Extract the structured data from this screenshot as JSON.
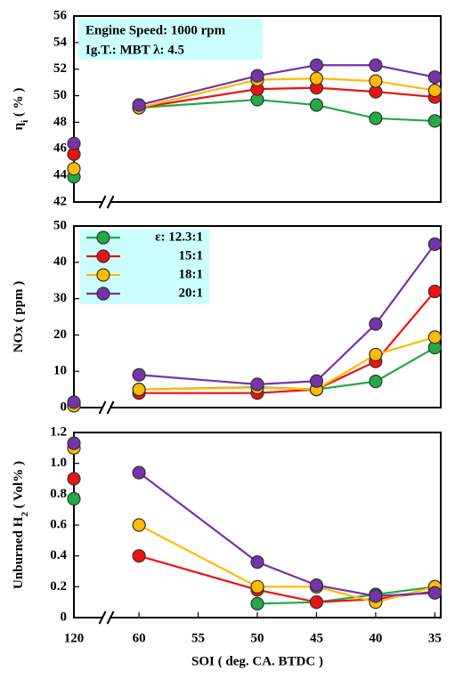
{
  "chart_data": [
    {
      "type": "line",
      "ylabel": [
        "η",
        "i",
        " ( % )"
      ],
      "annotations": [
        "Engine Speed: 1000 rpm",
        "Ig.T.: MBT  λ: 4.5"
      ],
      "x": [
        120,
        60,
        50,
        45,
        40,
        35
      ],
      "xlim": [
        65.5,
        34.5
      ],
      "x_break": true,
      "ylim": [
        42,
        56
      ],
      "yticks": [
        42,
        44,
        46,
        48,
        50,
        52,
        54,
        56
      ],
      "series": [
        {
          "color": "#22aa44",
          "values": [
            43.9,
            49.1,
            49.7,
            49.3,
            48.3,
            48.1
          ]
        },
        {
          "color": "#ee1111",
          "values": [
            45.6,
            49.1,
            50.5,
            50.6,
            50.3,
            49.9
          ]
        },
        {
          "color": "#ffbb00",
          "values": [
            44.5,
            49.1,
            51.2,
            51.3,
            51.1,
            50.4
          ]
        },
        {
          "color": "#7733aa",
          "values": [
            46.4,
            49.3,
            51.5,
            52.3,
            52.3,
            51.4
          ]
        }
      ]
    },
    {
      "type": "line",
      "ylabel": [
        "NOx ( ppm )"
      ],
      "legend": "upper left",
      "x": [
        120,
        60,
        50,
        45,
        40,
        35
      ],
      "xlim": [
        65.5,
        34.5
      ],
      "x_break": true,
      "ylim": [
        0,
        50
      ],
      "yticks": [
        0,
        10,
        20,
        30,
        40,
        50
      ],
      "series": [
        {
          "name": "ε: 12.3:1",
          "color": "#22aa44",
          "values": [
            1,
            5,
            5.6,
            5,
            7.2,
            16.5
          ]
        },
        {
          "name": "15:1",
          "color": "#ee1111",
          "values": [
            1,
            4,
            4,
            5,
            12.7,
            32
          ]
        },
        {
          "name": "18:1",
          "color": "#ffbb00",
          "values": [
            0.5,
            5,
            5.5,
            5,
            14.6,
            19.4
          ]
        },
        {
          "name": "20:1",
          "color": "#7733aa",
          "values": [
            1.5,
            9,
            6.4,
            7.3,
            23,
            45
          ]
        }
      ]
    },
    {
      "type": "line",
      "ylabel": [
        "Unburned H",
        "2",
        " ( Vol% )"
      ],
      "xlabel": "SOI ( deg. CA. BTDC )",
      "x": [
        120,
        60,
        50,
        45,
        40,
        35
      ],
      "xlim": [
        65.5,
        34.5
      ],
      "x_break": true,
      "xticks": [
        120,
        60,
        55,
        50,
        45,
        40,
        35
      ],
      "ylim": [
        0,
        1.2
      ],
      "yticks": [
        0,
        0.2,
        0.4,
        0.6,
        0.8,
        {
          "value": 1,
          "label": "1.0"
        },
        1.2
      ],
      "series": [
        {
          "color": "#22aa44",
          "values": [
            0.77,
            null,
            0.09,
            0.1,
            0.15,
            0.2
          ]
        },
        {
          "color": "#ee1111",
          "values": [
            0.9,
            0.4,
            0.18,
            0.1,
            0.12,
            0.17
          ]
        },
        {
          "color": "#ffbb00",
          "values": [
            1.1,
            0.6,
            0.2,
            0.2,
            0.1,
            0.2
          ]
        },
        {
          "color": "#7733aa",
          "values": [
            1.13,
            0.94,
            0.36,
            0.21,
            0.14,
            0.16
          ]
        }
      ]
    }
  ]
}
